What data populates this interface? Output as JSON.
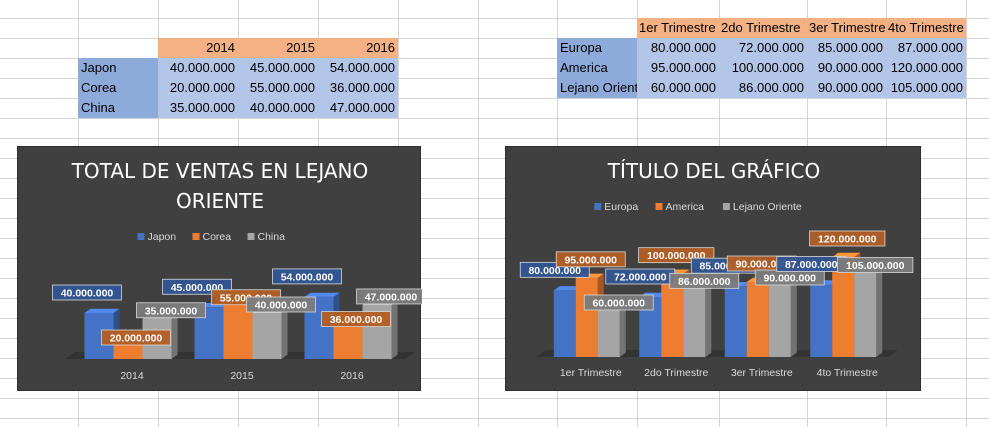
{
  "table1": {
    "years": [
      "2014",
      "2015",
      "2016"
    ],
    "rows": [
      {
        "label": "Japon",
        "values": [
          "40.000.000",
          "45.000.000",
          "54.000.000"
        ]
      },
      {
        "label": "Corea",
        "values": [
          "20.000.000",
          "55.000.000",
          "36.000.000"
        ]
      },
      {
        "label": "China",
        "values": [
          "35.000.000",
          "40.000.000",
          "47.000.000"
        ]
      }
    ]
  },
  "table2": {
    "quarters": [
      "1er Trimestre",
      "2do Trimestre",
      "3er Trimestre",
      "4to Trimestre"
    ],
    "rows": [
      {
        "label": "Europa",
        "values": [
          "80.000.000",
          "72.000.000",
          "85.000.000",
          "87.000.000"
        ]
      },
      {
        "label": "America",
        "values": [
          "95.000.000",
          "100.000.000",
          "90.000.000",
          "120.000.000"
        ]
      },
      {
        "label": "Lejano Oriente",
        "values": [
          "60.000.000",
          "86.000.000",
          "90.000.000",
          "105.000.000"
        ]
      }
    ]
  },
  "colors": {
    "blue": "#4472c4",
    "orange": "#ed7d31",
    "gray": "#a5a5a5",
    "chart_bg": "#404040"
  },
  "chart_data": [
    {
      "type": "bar",
      "title_lines": [
        "TOTAL DE VENTAS EN LEJANO",
        "ORIENTE"
      ],
      "categories": [
        "2014",
        "2015",
        "2016"
      ],
      "series": [
        {
          "name": "Japon",
          "values": [
            40000000,
            45000000,
            54000000
          ],
          "labels": [
            "40.000.000",
            "45.000.000",
            "54.000.000"
          ]
        },
        {
          "name": "Corea",
          "values": [
            20000000,
            55000000,
            36000000
          ],
          "labels": [
            "20.000.000",
            "55.000.000",
            "36.000.000"
          ]
        },
        {
          "name": "China",
          "values": [
            35000000,
            40000000,
            47000000
          ],
          "labels": [
            "35.000.000",
            "40.000.000",
            "47.000.000"
          ]
        }
      ],
      "ylim": [
        0,
        100000000
      ],
      "legend": "top",
      "grid": false,
      "style": "3d-clustered-column"
    },
    {
      "type": "bar",
      "title_lines": [
        "TÍTULO DEL GRÁFICO"
      ],
      "categories": [
        "1er Trimestre",
        "2do Trimestre",
        "3er Trimestre",
        "4to Trimestre"
      ],
      "series": [
        {
          "name": "Europa",
          "values": [
            80000000,
            72000000,
            85000000,
            87000000
          ],
          "labels": [
            "80.000.000",
            "72.000.000",
            "85.000.000",
            "87.000.000"
          ]
        },
        {
          "name": "America",
          "values": [
            95000000,
            100000000,
            90000000,
            120000000
          ],
          "labels": [
            "95.000.000",
            "100.000.000",
            "90.000.000",
            "120.000.000"
          ]
        },
        {
          "name": "Lejano Oriente",
          "values": [
            60000000,
            86000000,
            90000000,
            105000000
          ],
          "labels": [
            "60.000.000",
            "86.000.000",
            "90.000.000",
            "105.000.000"
          ]
        }
      ],
      "ylim": [
        0,
        120000000
      ],
      "legend": "top",
      "grid": false,
      "style": "3d-clustered-column"
    }
  ]
}
